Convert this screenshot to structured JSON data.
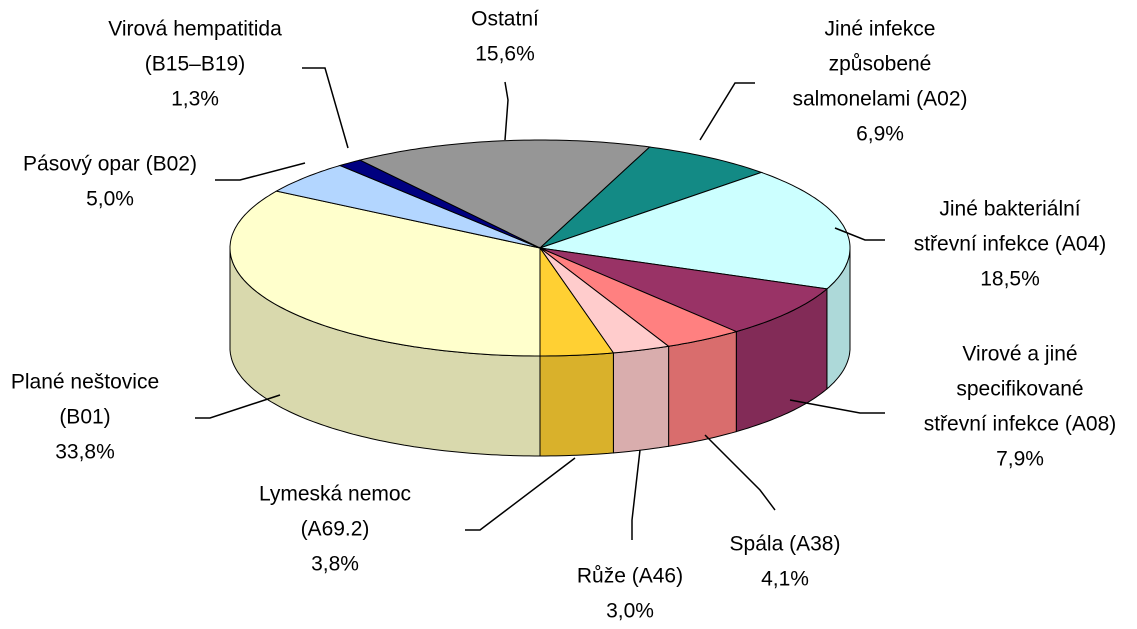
{
  "chart_data": {
    "type": "pie3d",
    "categories": [
      [
        "Plané neštovice",
        "(B01)"
      ],
      [
        "Pásový opar (B02)"
      ],
      [
        "Virová hempatitida",
        "(B15–B19)"
      ],
      [
        "Ostatní"
      ],
      [
        "Jiné infekce",
        "způsobené",
        "salmonelami (A02)"
      ],
      [
        "Jiné bakteriální",
        "střevní infekce (A04)"
      ],
      [
        "Virové a jiné",
        "specifikované",
        "střevní infekce (A08)"
      ],
      [
        "Spála (A38)"
      ],
      [
        "Růže (A46)"
      ],
      [
        "Lymeská nemoc",
        "(A69.2)"
      ]
    ],
    "values": [
      33.8,
      5.0,
      1.3,
      15.6,
      6.9,
      18.5,
      7.9,
      4.1,
      3.0,
      3.8
    ],
    "value_labels": [
      "33,8%",
      "5,0%",
      "1,3%",
      "15,6%",
      "6,9%",
      "18,5%",
      "7,9%",
      "4,1%",
      "3,0%",
      "3,8%"
    ],
    "colors": [
      "#ffffcc",
      "#b3d6ff",
      "#000080",
      "#969696",
      "#138a85",
      "#ccffff",
      "#993366",
      "#ff8080",
      "#ffcccc",
      "#ffd033"
    ]
  }
}
